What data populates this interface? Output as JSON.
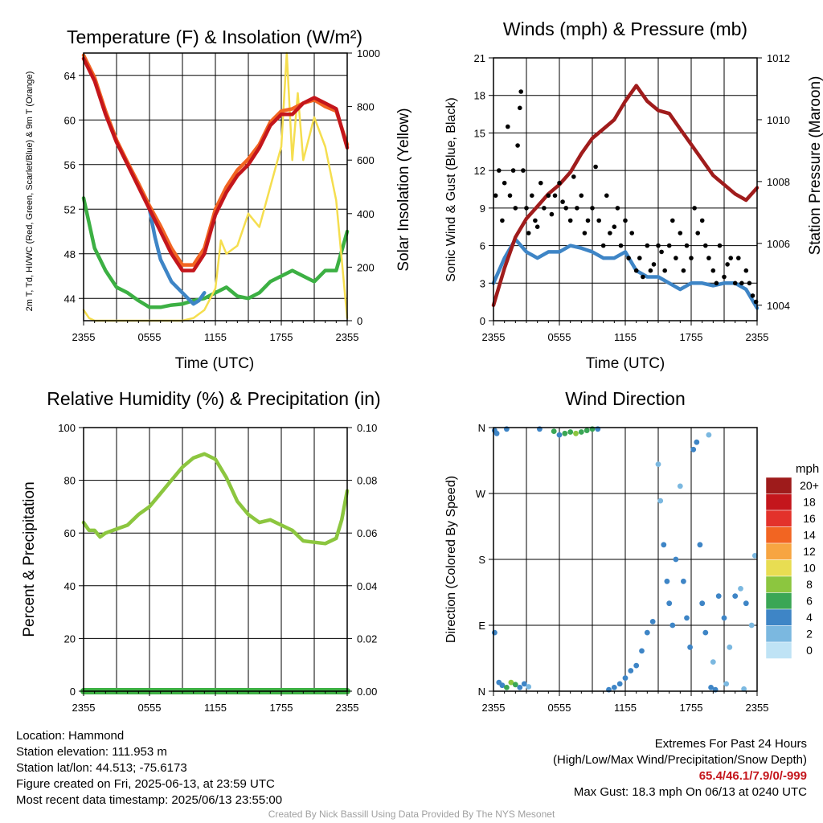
{
  "chart_data": [
    {
      "type": "line",
      "title": "Temperature (F) & Insolation (W/m²)",
      "xlabel": "Time (UTC)",
      "ylabel": "2m T, Td, HI/WC (Red, Green, Scarlet/Blue) & 9m T (Orange)",
      "y2label": "Solar Insolation (Yellow)",
      "x_ticks": [
        "2355",
        "0555",
        "1155",
        "1755",
        "2355"
      ],
      "ylim": [
        42,
        66
      ],
      "y_ticks": [
        44,
        48,
        52,
        56,
        60,
        64
      ],
      "y2lim": [
        0,
        1000
      ],
      "y2_ticks": [
        0,
        200,
        400,
        600,
        800,
        1000
      ],
      "series": [
        {
          "key": "temp",
          "color": "#c4161c",
          "x": [
            0,
            1,
            2,
            3,
            4,
            5,
            6,
            7,
            8,
            9,
            10,
            11,
            12,
            13,
            14,
            15,
            16,
            17,
            18,
            19,
            20,
            21,
            22,
            23,
            24
          ],
          "values": [
            65.5,
            63.5,
            60.5,
            58,
            56,
            54,
            52,
            50,
            48,
            46.5,
            46.5,
            48,
            51.5,
            53.5,
            55,
            56,
            57.5,
            59.5,
            60.5,
            60.5,
            61.5,
            62,
            61.5,
            61,
            57.5
          ]
        },
        {
          "key": "temp9m",
          "color": "#f26522",
          "x": [
            0,
            1,
            2,
            3,
            4,
            5,
            6,
            7,
            8,
            9,
            10,
            11,
            12,
            13,
            14,
            15,
            16,
            17,
            18,
            19,
            20,
            21,
            22,
            23,
            24
          ],
          "values": [
            65.8,
            63.8,
            60.8,
            58.2,
            56.2,
            54.3,
            52.3,
            50.5,
            48.5,
            47,
            47,
            48.5,
            52,
            54,
            55.5,
            56.5,
            57.8,
            59.8,
            60.8,
            61,
            61.5,
            61.8,
            61.2,
            60.8,
            57.8
          ]
        },
        {
          "key": "dewpoint",
          "color": "#3cb043",
          "x": [
            0,
            1,
            2,
            3,
            4,
            5,
            6,
            7,
            8,
            9,
            10,
            11,
            12,
            13,
            14,
            15,
            16,
            17,
            18,
            19,
            20,
            21,
            22,
            23,
            24
          ],
          "values": [
            53,
            48.5,
            46.5,
            45,
            44.5,
            43.8,
            43.2,
            43.2,
            43.4,
            43.5,
            43.8,
            44,
            44.5,
            45,
            44.2,
            44,
            44.5,
            45.5,
            46,
            46.5,
            46,
            45.5,
            46.5,
            46.5,
            50
          ]
        },
        {
          "key": "windchill",
          "color": "#3e85c6",
          "x": [
            6,
            6.5,
            7,
            8,
            9,
            10,
            10.5,
            11
          ],
          "values": [
            52,
            49.5,
            47.5,
            45.5,
            44.5,
            43.5,
            43.8,
            44.5
          ]
        },
        {
          "key": "insolation",
          "color": "#f5de4f",
          "axis": "y2",
          "x": [
            0,
            0.5,
            1,
            2,
            3,
            4,
            5,
            6,
            7,
            8,
            9,
            10,
            11,
            12,
            12.5,
            13,
            14,
            15,
            16,
            17,
            18,
            18.5,
            19,
            19.5,
            20,
            21,
            22,
            23,
            24
          ],
          "values": [
            40,
            10,
            0,
            0,
            0,
            0,
            0,
            0,
            0,
            0,
            0,
            10,
            40,
            120,
            300,
            250,
            280,
            400,
            350,
            500,
            650,
            1000,
            600,
            850,
            600,
            760,
            650,
            450,
            10
          ]
        }
      ]
    },
    {
      "type": "line",
      "title": "Winds (mph) & Pressure (mb)",
      "xlabel": "Time (UTC)",
      "ylabel": "Sonic Wind & Gust (Blue, Black)",
      "y2label": "Station Pressure (Maroon)",
      "x_ticks": [
        "2355",
        "0555",
        "1155",
        "1755",
        "2355"
      ],
      "ylim": [
        0,
        21
      ],
      "y_ticks": [
        0,
        3,
        6,
        9,
        12,
        15,
        18,
        21
      ],
      "y2lim": [
        1003.5,
        1012
      ],
      "y2_ticks": [
        1004,
        1006,
        1008,
        1010,
        1012
      ],
      "series": [
        {
          "key": "wind",
          "color": "#3e85c6",
          "x": [
            0,
            1,
            2,
            3,
            4,
            5,
            6,
            7,
            8,
            9,
            10,
            11,
            12,
            13,
            14,
            15,
            16,
            17,
            18,
            19,
            20,
            21,
            22,
            23,
            24
          ],
          "values": [
            3,
            5,
            6.5,
            5.5,
            5,
            5.5,
            5.5,
            6,
            5.8,
            5.5,
            5,
            5,
            5.5,
            4,
            3.5,
            3.5,
            3,
            2.5,
            3,
            3,
            2.8,
            3,
            3,
            2.5,
            1
          ]
        },
        {
          "key": "pressure",
          "color": "#a01c1c",
          "axis": "y2",
          "x": [
            0,
            1,
            2,
            3,
            4,
            5,
            6,
            7,
            8,
            9,
            10,
            11,
            12,
            13,
            14,
            15,
            16,
            17,
            18,
            19,
            20,
            21,
            22,
            23,
            24
          ],
          "values": [
            1004,
            1005.2,
            1006.2,
            1006.8,
            1007.2,
            1007.6,
            1007.9,
            1008.3,
            1008.9,
            1009.4,
            1009.7,
            1010,
            1010.6,
            1011.1,
            1010.6,
            1010.3,
            1010.2,
            1009.7,
            1009.2,
            1008.7,
            1008.2,
            1007.9,
            1007.6,
            1007.4,
            1007.8
          ]
        },
        {
          "key": "gust",
          "color": "#000000",
          "mode": "scatter",
          "x": [
            0.2,
            0.5,
            0.8,
            1,
            1.3,
            1.5,
            1.8,
            2,
            2.2,
            2.4,
            2.5,
            2.7,
            3,
            3.2,
            3.5,
            3.8,
            4,
            4.3,
            4.6,
            5,
            5.3,
            5.6,
            6,
            6.3,
            6.6,
            7,
            7.3,
            7.6,
            8,
            8.3,
            8.6,
            9,
            9.3,
            9.6,
            10,
            10.3,
            10.6,
            11,
            11.3,
            11.6,
            12,
            12.3,
            12.6,
            13,
            13.3,
            13.6,
            14,
            14.3,
            14.6,
            15,
            15.3,
            15.6,
            16,
            16.3,
            16.6,
            17,
            17.3,
            17.6,
            18,
            18.3,
            18.6,
            19,
            19.3,
            19.6,
            20,
            20.3,
            20.6,
            21,
            21.3,
            21.6,
            22,
            22.3,
            22.6,
            23,
            23.3,
            23.6,
            23.9
          ],
          "values": [
            10,
            12,
            8,
            11,
            15.5,
            10,
            12,
            9,
            14,
            17,
            18.3,
            12,
            9,
            7,
            10,
            8,
            7.5,
            11,
            9,
            10,
            8.5,
            10,
            11,
            9.5,
            9,
            8,
            11.5,
            9,
            10,
            7,
            8,
            9,
            12.3,
            8,
            6,
            10,
            7,
            7.5,
            9,
            6,
            8,
            5,
            7,
            4,
            5,
            3.5,
            6,
            4,
            4.5,
            6,
            5.5,
            4,
            6,
            8,
            5,
            7,
            4,
            6,
            5,
            9,
            7,
            8,
            6,
            5,
            4,
            3,
            6,
            3.5,
            4.5,
            5,
            3,
            5,
            3,
            4,
            3,
            2,
            1.5
          ]
        }
      ]
    },
    {
      "type": "line",
      "title": "Relative Humidity (%) & Precipitation (in)",
      "ylabel": "Percent & Precipitation",
      "x_ticks": [
        "2355",
        "0555",
        "1155",
        "1755",
        "2355"
      ],
      "ylim": [
        0,
        100
      ],
      "y_ticks": [
        0,
        20,
        40,
        60,
        80,
        100
      ],
      "y2lim": [
        0,
        0.1
      ],
      "y2_ticks": [
        "0.00",
        "0.02",
        "0.04",
        "0.06",
        "0.08",
        "0.10"
      ],
      "series": [
        {
          "key": "rh",
          "color": "#8cc63f",
          "x": [
            0,
            0.5,
            1,
            1.5,
            2,
            3,
            4,
            5,
            6,
            7,
            8,
            9,
            10,
            11,
            12,
            13,
            14,
            15,
            16,
            17,
            18,
            19,
            20,
            21,
            22,
            23,
            23.5,
            24
          ],
          "values": [
            64,
            61,
            61,
            58.5,
            60,
            61.5,
            63,
            67,
            70,
            75,
            80,
            85,
            88.5,
            90,
            88,
            81,
            72,
            67,
            64,
            65,
            63,
            61,
            57,
            56.5,
            56,
            58,
            65,
            76
          ]
        },
        {
          "key": "precip",
          "color": "#3cb043",
          "axis": "y2",
          "x": [
            0,
            24
          ],
          "values": [
            0,
            0
          ]
        }
      ]
    },
    {
      "type": "scatter",
      "title": "Wind Direction",
      "ylabel": "Direction (Colored By Speed)",
      "x_ticks": [
        "2355",
        "0555",
        "1155",
        "1755",
        "2355"
      ],
      "y_ticks": [
        "N",
        "E",
        "S",
        "W",
        "N"
      ],
      "ylim": [
        0,
        360
      ],
      "legend": {
        "unit": "mph",
        "labels": [
          "20+",
          "18",
          "16",
          "14",
          "12",
          "10",
          "8",
          "6",
          "4",
          "2",
          "0"
        ],
        "colors": [
          "#9e1b1b",
          "#c4161c",
          "#e3322b",
          "#f26522",
          "#f7a541",
          "#e8dd52",
          "#8cc63f",
          "#3aa655",
          "#3e85c6",
          "#7bb8e0",
          "#bfe3f5"
        ],
        "placement": "right"
      },
      "points": [
        {
          "x": 0.1,
          "y": 356,
          "s": 4
        },
        {
          "x": 0.3,
          "y": 352,
          "s": 3
        },
        {
          "x": 0.1,
          "y": 80,
          "s": 4
        },
        {
          "x": 1.2,
          "y": 358,
          "s": 3
        },
        {
          "x": 0.5,
          "y": 12,
          "s": 4
        },
        {
          "x": 0.8,
          "y": 8,
          "s": 3
        },
        {
          "x": 1.2,
          "y": 5,
          "s": 6
        },
        {
          "x": 1.6,
          "y": 12,
          "s": 7
        },
        {
          "x": 2.0,
          "y": 9,
          "s": 6
        },
        {
          "x": 2.4,
          "y": 5,
          "s": 3
        },
        {
          "x": 2.8,
          "y": 10,
          "s": 4
        },
        {
          "x": 3.2,
          "y": 6,
          "s": 2
        },
        {
          "x": 5.5,
          "y": 355,
          "s": 5
        },
        {
          "x": 6.0,
          "y": 350,
          "s": 4
        },
        {
          "x": 6.5,
          "y": 352,
          "s": 6
        },
        {
          "x": 7.0,
          "y": 354,
          "s": 6
        },
        {
          "x": 7.5,
          "y": 352,
          "s": 7
        },
        {
          "x": 8.0,
          "y": 354,
          "s": 6
        },
        {
          "x": 8.5,
          "y": 356,
          "s": 6
        },
        {
          "x": 9.0,
          "y": 358,
          "s": 5
        },
        {
          "x": 9.5,
          "y": 358,
          "s": 3
        },
        {
          "x": 4.2,
          "y": 358,
          "s": 3
        },
        {
          "x": 10.5,
          "y": 2,
          "s": 4
        },
        {
          "x": 11.0,
          "y": 5,
          "s": 4
        },
        {
          "x": 11.5,
          "y": 10,
          "s": 4
        },
        {
          "x": 12.0,
          "y": 18,
          "s": 3
        },
        {
          "x": 12.5,
          "y": 28,
          "s": 3
        },
        {
          "x": 13.0,
          "y": 35,
          "s": 4
        },
        {
          "x": 13.5,
          "y": 55,
          "s": 3
        },
        {
          "x": 14.0,
          "y": 80,
          "s": 4
        },
        {
          "x": 14.5,
          "y": 95,
          "s": 3
        },
        {
          "x": 15.0,
          "y": 310,
          "s": 2
        },
        {
          "x": 15.2,
          "y": 260,
          "s": 2
        },
        {
          "x": 15.5,
          "y": 200,
          "s": 3
        },
        {
          "x": 15.8,
          "y": 150,
          "s": 3
        },
        {
          "x": 16.0,
          "y": 120,
          "s": 4
        },
        {
          "x": 16.3,
          "y": 90,
          "s": 3
        },
        {
          "x": 16.6,
          "y": 180,
          "s": 3
        },
        {
          "x": 17.0,
          "y": 280,
          "s": 2
        },
        {
          "x": 17.3,
          "y": 150,
          "s": 4
        },
        {
          "x": 17.6,
          "y": 100,
          "s": 3
        },
        {
          "x": 17.9,
          "y": 60,
          "s": 3
        },
        {
          "x": 18.2,
          "y": 330,
          "s": 3
        },
        {
          "x": 18.5,
          "y": 340,
          "s": 4
        },
        {
          "x": 18.8,
          "y": 200,
          "s": 3
        },
        {
          "x": 19.0,
          "y": 120,
          "s": 4
        },
        {
          "x": 19.3,
          "y": 80,
          "s": 3
        },
        {
          "x": 19.6,
          "y": 350,
          "s": 2
        },
        {
          "x": 19.8,
          "y": 5,
          "s": 4
        },
        {
          "x": 20.0,
          "y": 40,
          "s": 2
        },
        {
          "x": 20.5,
          "y": 130,
          "s": 4
        },
        {
          "x": 21.0,
          "y": 100,
          "s": 3
        },
        {
          "x": 21.5,
          "y": 60,
          "s": 2
        },
        {
          "x": 22.0,
          "y": 130,
          "s": 3
        },
        {
          "x": 22.5,
          "y": 140,
          "s": 2
        },
        {
          "x": 23.0,
          "y": 120,
          "s": 3
        },
        {
          "x": 23.5,
          "y": 90,
          "s": 2
        },
        {
          "x": 23.8,
          "y": 185,
          "s": 2
        },
        {
          "x": 20.2,
          "y": 2,
          "s": 3
        },
        {
          "x": 21.2,
          "y": 10,
          "s": 2
        },
        {
          "x": 22.8,
          "y": 3,
          "s": 1
        }
      ]
    }
  ],
  "info": {
    "location": "Location: Hammond",
    "elevation": "Station elevation: 111.953 m",
    "latlon": "Station lat/lon: 44.513; -75.6173",
    "created": "Figure created on Fri, 2025-06-13, at 23:59 UTC",
    "recent": "Most recent data timestamp: 2025/06/13 23:55:00"
  },
  "extremes": {
    "title": "Extremes For Past 24 Hours",
    "subtitle": "(High/Low/Max Wind/Precipitation/Snow Depth)",
    "values": "65.4/46.1/7.9/0/-999",
    "max_gust": "Max Gust: 18.3 mph On 06/13 at 0240 UTC"
  },
  "credit": "Created By Nick Bassill Using Data Provided By The NYS Mesonet"
}
